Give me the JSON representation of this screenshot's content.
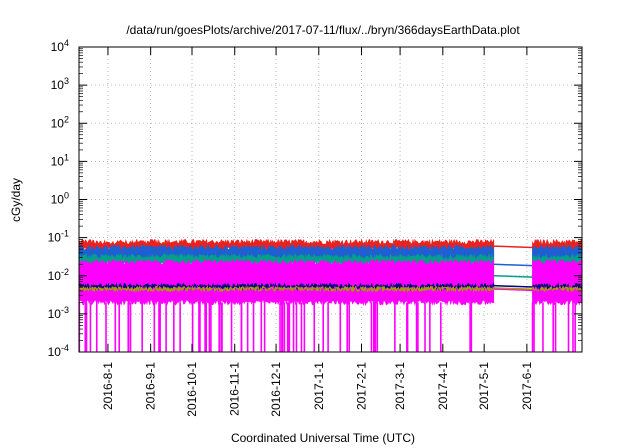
{
  "chart_data": {
    "type": "line",
    "title": "/data/run/goesPlots/archive/2017-07-11/flux/../bryn/366daysEarthData.plot",
    "xlabel": "Coordinated Universal Time (UTC)",
    "ylabel": "cGy/day",
    "yscale": "log",
    "ylim_exponents": [
      -4,
      4
    ],
    "y_tick_labels": [
      {
        "base": "10",
        "exp": "-4"
      },
      {
        "base": "10",
        "exp": "-3"
      },
      {
        "base": "10",
        "exp": "-2"
      },
      {
        "base": "10",
        "exp": "-1"
      },
      {
        "base": "10",
        "exp": "0"
      },
      {
        "base": "10",
        "exp": "1"
      },
      {
        "base": "10",
        "exp": "2"
      },
      {
        "base": "10",
        "exp": "3"
      },
      {
        "base": "10",
        "exp": "4"
      }
    ],
    "xlim": [
      "2016-07-11",
      "2017-07-11"
    ],
    "x_tick_labels": [
      "2016-8-1",
      "2016-9-1",
      "2016-10-1",
      "2016-11-1",
      "2016-12-1",
      "2017-1-1",
      "2017-2-1",
      "2017-3-1",
      "2017-4-1",
      "2017-5-1",
      "2017-6-1"
    ],
    "x_tick_dates": [
      "2016-08-01",
      "2016-09-01",
      "2016-10-01",
      "2016-11-01",
      "2016-12-01",
      "2017-01-01",
      "2017-02-01",
      "2017-03-01",
      "2017-04-01",
      "2017-05-01",
      "2017-06-01"
    ],
    "grid": true,
    "data_gap": [
      "2017-05-08",
      "2017-06-05"
    ],
    "series": [
      {
        "color": "#ff00ff",
        "band": [
          0.002,
          0.025
        ],
        "gap_level": 0.0045,
        "dropouts_to": 0.0001
      },
      {
        "color": "#00a08a",
        "band": [
          0.02,
          0.035
        ],
        "gap_level": 0.01
      },
      {
        "color": "#1f5fd1",
        "band": [
          0.025,
          0.06
        ],
        "gap_level": 0.02
      },
      {
        "color": "#e8231f",
        "band": [
          0.05,
          0.085
        ],
        "gap_level": 0.06
      },
      {
        "color": "#000080",
        "band": [
          0.005,
          0.006
        ],
        "gap_level": 0.0055
      },
      {
        "color": "#a0a000",
        "band": [
          0.0045,
          0.005
        ],
        "gap_level": 0.0048
      }
    ]
  }
}
